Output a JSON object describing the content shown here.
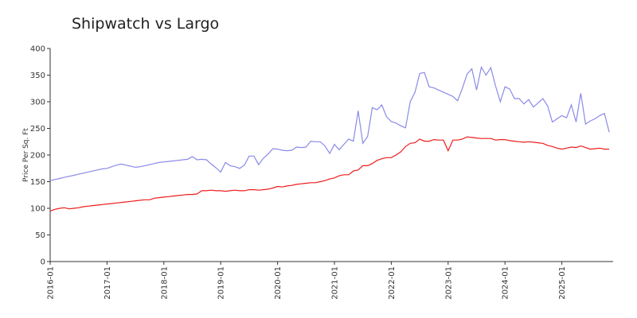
{
  "chart_data": {
    "type": "line",
    "title": "Shipwatch vs Largo",
    "y_label": "Price Per Sq. Ft",
    "x": [
      "2016-01",
      "2016-02",
      "2016-03",
      "2016-04",
      "2016-05",
      "2016-06",
      "2016-07",
      "2016-08",
      "2016-09",
      "2016-10",
      "2016-11",
      "2016-12",
      "2017-01",
      "2017-02",
      "2017-03",
      "2017-04",
      "2017-05",
      "2017-06",
      "2017-07",
      "2017-08",
      "2017-09",
      "2017-10",
      "2017-11",
      "2017-12",
      "2018-01",
      "2018-02",
      "2018-03",
      "2018-04",
      "2018-05",
      "2018-06",
      "2018-07",
      "2018-08",
      "2018-09",
      "2018-10",
      "2018-11",
      "2018-12",
      "2019-01",
      "2019-02",
      "2019-03",
      "2019-04",
      "2019-05",
      "2019-06",
      "2019-07",
      "2019-08",
      "2019-09",
      "2019-10",
      "2019-11",
      "2019-12",
      "2020-01",
      "2020-02",
      "2020-03",
      "2020-04",
      "2020-05",
      "2020-06",
      "2020-07",
      "2020-08",
      "2020-09",
      "2020-10",
      "2020-11",
      "2020-12",
      "2021-01",
      "2021-02",
      "2021-03",
      "2021-04",
      "2021-05",
      "2021-06",
      "2021-07",
      "2021-08",
      "2021-09",
      "2021-10",
      "2021-11",
      "2021-12",
      "2022-01",
      "2022-02",
      "2022-03",
      "2022-04",
      "2022-05",
      "2022-06",
      "2022-07",
      "2022-08",
      "2022-09",
      "2022-10",
      "2022-11",
      "2022-12",
      "2023-01",
      "2023-02",
      "2023-03",
      "2023-04",
      "2023-05",
      "2023-06",
      "2023-07",
      "2023-08",
      "2023-09",
      "2023-10",
      "2023-11",
      "2023-12",
      "2024-01",
      "2024-02",
      "2024-03",
      "2024-04",
      "2024-05",
      "2024-06",
      "2024-07",
      "2024-08",
      "2024-09",
      "2024-10",
      "2024-11",
      "2024-12",
      "2025-01",
      "2025-02",
      "2025-03",
      "2025-04",
      "2025-05",
      "2025-06",
      "2025-07",
      "2025-08",
      "2025-09",
      "2025-10",
      "2025-11"
    ],
    "series": [
      {
        "color": "#8a8ae8",
        "values": [
          152,
          154,
          156,
          158,
          160,
          162,
          164,
          166,
          168,
          170,
          172,
          174,
          175,
          178,
          181,
          183,
          181,
          179,
          177,
          178,
          180,
          182,
          184,
          186,
          187,
          188,
          189,
          190,
          191,
          192,
          197,
          191,
          192,
          191,
          183,
          176,
          168,
          186,
          180,
          178,
          175,
          181,
          198,
          198,
          182,
          194,
          202,
          212,
          211,
          209,
          208,
          209,
          215,
          214,
          215,
          226,
          225,
          225,
          217,
          203,
          220,
          210,
          220,
          230,
          226,
          283,
          222,
          235,
          289,
          285,
          294,
          272,
          263,
          260,
          255,
          251,
          300,
          318,
          353,
          355,
          328,
          326,
          322,
          318,
          314,
          310,
          302,
          325,
          352,
          362,
          322,
          365,
          350,
          364,
          330,
          300,
          328,
          324,
          306,
          306,
          296,
          304,
          290,
          298,
          306,
          292,
          262,
          268,
          274,
          270,
          294,
          262,
          316,
          258,
          264,
          268,
          274,
          278,
          243
        ]
      },
      {
        "color": "#ee1c1c",
        "values": [
          95,
          98,
          100,
          101,
          99,
          100,
          101,
          103,
          104,
          105,
          106,
          107,
          108,
          109,
          110,
          111,
          112,
          113,
          114,
          115,
          116,
          116,
          119,
          120,
          121,
          122,
          123,
          124,
          125,
          126,
          126,
          127,
          133,
          133,
          134,
          133,
          133,
          132,
          133,
          134,
          133,
          133,
          135,
          135,
          134,
          135,
          136,
          138,
          141,
          140,
          142,
          143,
          145,
          146,
          147,
          148,
          148,
          150,
          152,
          155,
          157,
          161,
          163,
          163,
          170,
          172,
          180,
          180,
          184,
          190,
          193,
          195,
          195,
          200,
          206,
          216,
          222,
          223,
          230,
          226,
          226,
          229,
          228,
          228,
          208,
          228,
          228,
          230,
          234,
          233,
          232,
          231,
          231,
          231,
          228,
          229,
          229,
          227,
          226,
          225,
          224,
          225,
          224,
          223,
          222,
          218,
          216,
          213,
          211,
          213,
          215,
          214,
          217,
          214,
          211,
          212,
          213,
          211,
          211
        ]
      }
    ],
    "xticks": [
      "2016-01",
      "2017-01",
      "2018-01",
      "2019-01",
      "2020-01",
      "2021-01",
      "2022-01",
      "2023-01",
      "2024-01",
      "2025-01"
    ],
    "ylim": [
      0,
      400
    ],
    "yticks": [
      0,
      50,
      100,
      150,
      200,
      250,
      300,
      350,
      400
    ]
  }
}
